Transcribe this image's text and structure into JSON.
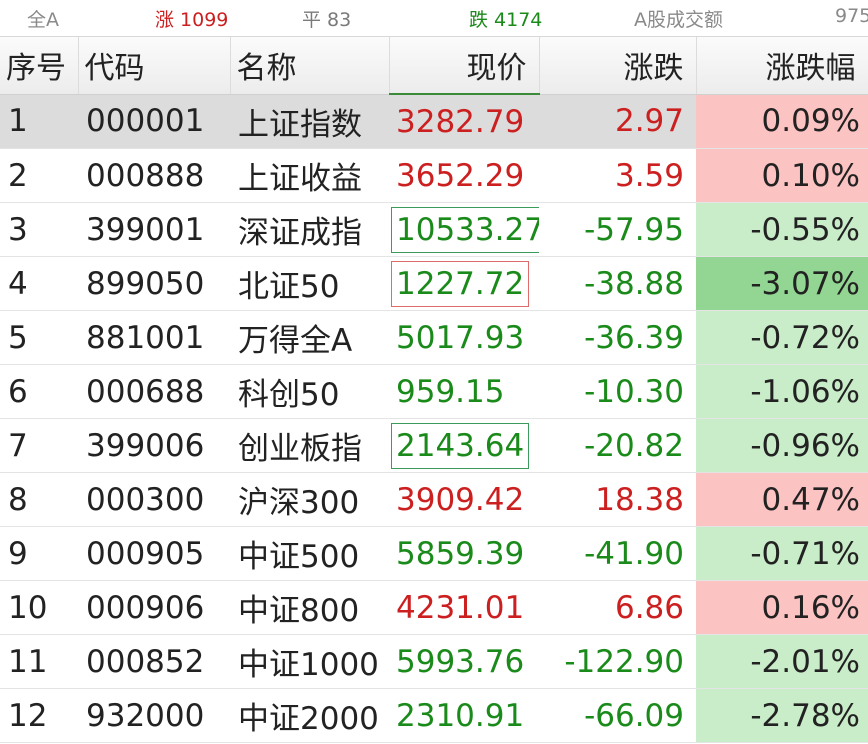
{
  "market_bar": {
    "scope": "全A",
    "up": "涨 1099",
    "flat": "平 83",
    "down": "跌 4174",
    "volume_label": "A股成交额",
    "volume_value": "975"
  },
  "columns": {
    "seq": "序号",
    "code": "代码",
    "name": "名称",
    "price": "现价",
    "change": "涨跌",
    "change_pct": "涨跌幅"
  },
  "colors": {
    "up": "#cc1f1f",
    "down": "#1a8a1a",
    "up_bg": "#fcc3c3",
    "down_bg": "#c9ecc9",
    "selected_row": "#dcdcdc"
  },
  "rows": [
    {
      "seq": "1",
      "code": "000001",
      "name": "上证指数",
      "price": "3282.79",
      "change": "2.97",
      "change_pct": "0.09%",
      "direction": "up",
      "selected": true
    },
    {
      "seq": "2",
      "code": "000888",
      "name": "上证收益",
      "price": "3652.29",
      "change": "3.59",
      "change_pct": "0.10%",
      "direction": "up"
    },
    {
      "seq": "3",
      "code": "399001",
      "name": "深证成指",
      "price": "10533.27",
      "change": "-57.95",
      "change_pct": "-0.55%",
      "direction": "down",
      "price_frame": "green"
    },
    {
      "seq": "4",
      "code": "899050",
      "name": "北证50",
      "price": "1227.72",
      "change": "-38.88",
      "change_pct": "-3.07%",
      "direction": "down",
      "price_frame": "red",
      "strong": true
    },
    {
      "seq": "5",
      "code": "881001",
      "name": "万得全A",
      "price": "5017.93",
      "change": "-36.39",
      "change_pct": "-0.72%",
      "direction": "down"
    },
    {
      "seq": "6",
      "code": "000688",
      "name": "科创50",
      "price": "959.15",
      "change": "-10.30",
      "change_pct": "-1.06%",
      "direction": "down"
    },
    {
      "seq": "7",
      "code": "399006",
      "name": "创业板指",
      "price": "2143.64",
      "change": "-20.82",
      "change_pct": "-0.96%",
      "direction": "down",
      "price_frame": "green"
    },
    {
      "seq": "8",
      "code": "000300",
      "name": "沪深300",
      "price": "3909.42",
      "change": "18.38",
      "change_pct": "0.47%",
      "direction": "up"
    },
    {
      "seq": "9",
      "code": "000905",
      "name": "中证500",
      "price": "5859.39",
      "change": "-41.90",
      "change_pct": "-0.71%",
      "direction": "down"
    },
    {
      "seq": "10",
      "code": "000906",
      "name": "中证800",
      "price": "4231.01",
      "change": "6.86",
      "change_pct": "0.16%",
      "direction": "up"
    },
    {
      "seq": "11",
      "code": "000852",
      "name": "中证1000",
      "price": "5993.76",
      "change": "-122.90",
      "change_pct": "-2.01%",
      "direction": "down"
    },
    {
      "seq": "12",
      "code": "932000",
      "name": "中证2000",
      "price": "2310.91",
      "change": "-66.09",
      "change_pct": "-2.78%",
      "direction": "down"
    }
  ]
}
